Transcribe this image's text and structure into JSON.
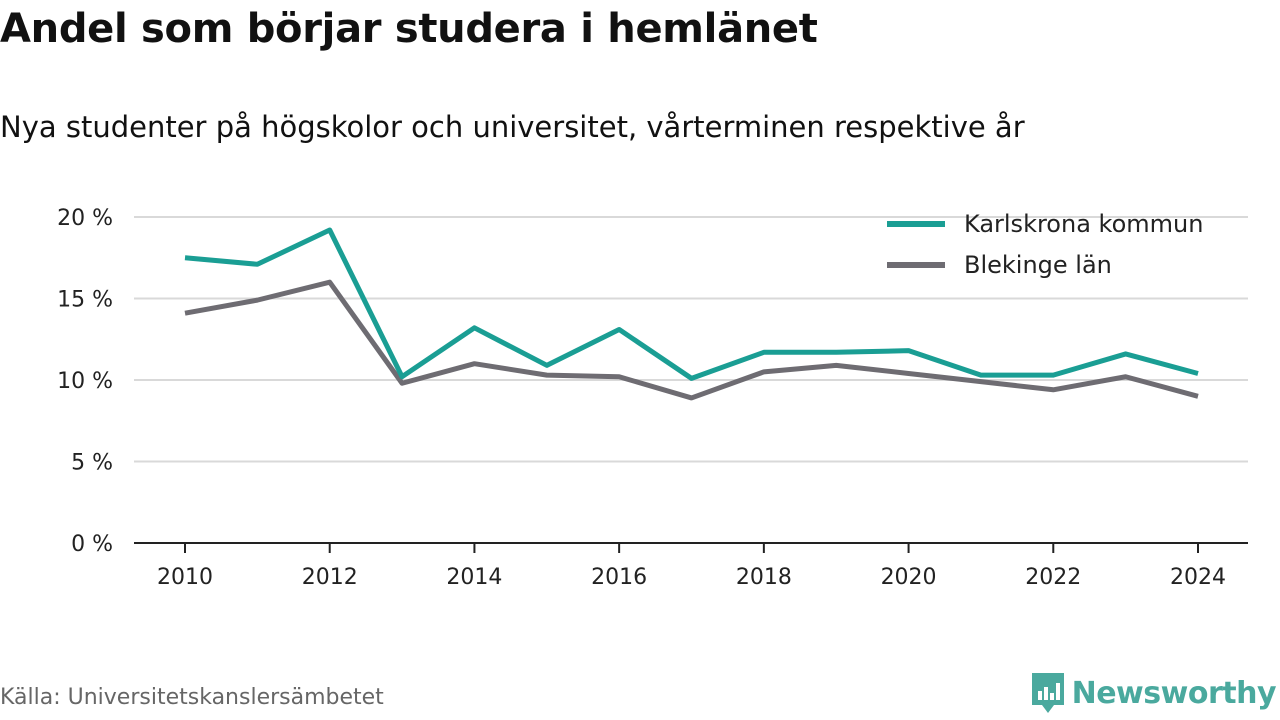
{
  "title": "Andel som börjar studera i hemlänet",
  "subtitle": "Nya studenter på högskolor och universitet, vårterminen respektive år",
  "source": "Källa: Universitetskanslersämbetet",
  "brand": {
    "name": "Newsworthy",
    "icon": "newsworthy-logo-icon",
    "color": "#4aa99e"
  },
  "chart_data": {
    "type": "line",
    "title": "Andel som börjar studera i hemlänet",
    "subtitle": "Nya studenter på högskolor och universitet, vårterminen respektive år",
    "xlabel": "",
    "ylabel": "",
    "x": [
      2010,
      2011,
      2012,
      2013,
      2014,
      2015,
      2016,
      2017,
      2018,
      2019,
      2020,
      2021,
      2022,
      2023,
      2024
    ],
    "xticks": [
      "2010",
      "2012",
      "2014",
      "2016",
      "2018",
      "2020",
      "2022",
      "2024"
    ],
    "yticks": [
      "0 %",
      "5 %",
      "10 %",
      "15 %",
      "20 %"
    ],
    "ylim": [
      0,
      20
    ],
    "grid": true,
    "legend_position": "top-right",
    "series": [
      {
        "name": "Karlskrona kommun",
        "color": "#1a9e94",
        "values": [
          17.5,
          17.1,
          19.2,
          10.2,
          13.2,
          10.9,
          13.1,
          10.1,
          11.7,
          11.7,
          11.8,
          10.3,
          10.3,
          11.6,
          10.4
        ]
      },
      {
        "name": "Blekinge län",
        "color": "#6e6c72",
        "values": [
          14.1,
          14.9,
          16.0,
          9.8,
          11.0,
          10.3,
          10.2,
          8.9,
          10.5,
          10.9,
          10.4,
          9.9,
          9.4,
          10.2,
          9.0
        ]
      }
    ]
  }
}
